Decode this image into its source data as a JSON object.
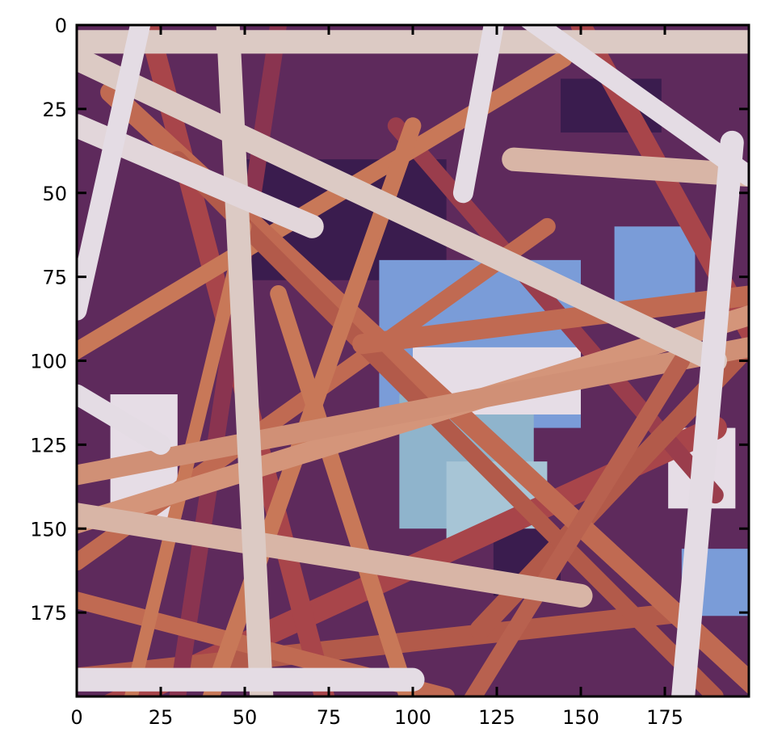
{
  "chart_data": {
    "type": "heatmap",
    "title": "",
    "xlabel": "",
    "ylabel": "",
    "xlim": [
      0,
      200
    ],
    "ylim": [
      200,
      0
    ],
    "origin": "top-left",
    "grid": false,
    "x_ticks": [
      0,
      25,
      50,
      75,
      100,
      125,
      150,
      175
    ],
    "y_ticks": [
      0,
      25,
      50,
      75,
      100,
      125,
      150,
      175
    ],
    "x_tick_labels": [
      "0",
      "25",
      "50",
      "75",
      "100",
      "125",
      "150",
      "175"
    ],
    "y_tick_labels": [
      "0",
      "25",
      "50",
      "75",
      "100",
      "125",
      "150",
      "175"
    ],
    "colormap": "twilight",
    "image_description": "Rendered depth image of randomly overlapping cylindrical fibers",
    "background_colors": [
      "#5e2a5c",
      "#3a1c4e",
      "#7a9cd8",
      "#8fb4cc",
      "#a7c5d6",
      "#e6dde6"
    ],
    "fibers": [
      {
        "x1": 5,
        "y1": 205,
        "x2": 190,
        "y2": 120,
        "w": 7,
        "color": "#a8454a"
      },
      {
        "x1": -5,
        "y1": 195,
        "x2": 180,
        "y2": 175,
        "w": 6,
        "color": "#b25a4a"
      },
      {
        "x1": 20,
        "y1": -5,
        "x2": 75,
        "y2": 205,
        "w": 6,
        "color": "#a8454a"
      },
      {
        "x1": 60,
        "y1": 0,
        "x2": 30,
        "y2": 200,
        "w": 5,
        "color": "#8a3450"
      },
      {
        "x1": 95,
        "y1": 30,
        "x2": 190,
        "y2": 140,
        "w": 5,
        "color": "#9a3d4c"
      },
      {
        "x1": 120,
        "y1": 180,
        "x2": 205,
        "y2": 90,
        "w": 6,
        "color": "#b25a4a"
      },
      {
        "x1": 150,
        "y1": 0,
        "x2": 205,
        "y2": 100,
        "w": 6,
        "color": "#a8454a"
      },
      {
        "x1": 0,
        "y1": 160,
        "x2": 140,
        "y2": 60,
        "w": 5,
        "color": "#c06a52"
      },
      {
        "x1": -5,
        "y1": 100,
        "x2": 145,
        "y2": 10,
        "w": 5,
        "color": "#c87858"
      },
      {
        "x1": 10,
        "y1": 20,
        "x2": 205,
        "y2": 200,
        "w": 6,
        "color": "#c06a52"
      },
      {
        "x1": 30,
        "y1": 40,
        "x2": 190,
        "y2": 200,
        "w": 5,
        "color": "#b25a4a"
      },
      {
        "x1": -5,
        "y1": 170,
        "x2": 110,
        "y2": 200,
        "w": 5,
        "color": "#c06a52"
      },
      {
        "x1": 85,
        "y1": 95,
        "x2": 205,
        "y2": 80,
        "w": 6,
        "color": "#c06a52"
      },
      {
        "x1": 40,
        "y1": 200,
        "x2": 100,
        "y2": 30,
        "w": 5,
        "color": "#c87858"
      },
      {
        "x1": 100,
        "y1": 205,
        "x2": 60,
        "y2": 80,
        "w": 5,
        "color": "#c87858"
      },
      {
        "x1": 15,
        "y1": 205,
        "x2": 50,
        "y2": 60,
        "w": 4,
        "color": "#c87858"
      },
      {
        "x1": -5,
        "y1": 150,
        "x2": 205,
        "y2": 85,
        "w": 6,
        "color": "#d4957a"
      },
      {
        "x1": -5,
        "y1": 135,
        "x2": 205,
        "y2": 95,
        "w": 6,
        "color": "#d09076"
      },
      {
        "x1": 115,
        "y1": 205,
        "x2": 180,
        "y2": 100,
        "w": 5,
        "color": "#b8614f"
      },
      {
        "x1": -5,
        "y1": 145,
        "x2": 150,
        "y2": 170,
        "w": 7,
        "color": "#d8b5a6"
      },
      {
        "x1": 45,
        "y1": 0,
        "x2": 55,
        "y2": 200,
        "w": 7,
        "color": "#dccac4"
      },
      {
        "x1": 0,
        "y1": 10,
        "x2": 190,
        "y2": 100,
        "w": 7,
        "color": "#dccac4"
      },
      {
        "x1": -5,
        "y1": 5,
        "x2": 205,
        "y2": 5,
        "w": 7,
        "color": "#dccac4"
      },
      {
        "x1": 130,
        "y1": 40,
        "x2": 205,
        "y2": 45,
        "w": 7,
        "color": "#d8b5a6"
      },
      {
        "x1": 0,
        "y1": 30,
        "x2": 70,
        "y2": 60,
        "w": 7,
        "color": "#e2d6da"
      },
      {
        "x1": 20,
        "y1": -5,
        "x2": 0,
        "y2": 85,
        "w": 6,
        "color": "#e4dce4"
      },
      {
        "x1": 0,
        "y1": 110,
        "x2": 25,
        "y2": 125,
        "w": 6,
        "color": "#e4dce4"
      },
      {
        "x1": 125,
        "y1": -5,
        "x2": 115,
        "y2": 50,
        "w": 6,
        "color": "#e4dce4"
      },
      {
        "x1": 130,
        "y1": -5,
        "x2": 200,
        "y2": 45,
        "w": 6,
        "color": "#e4dce4"
      },
      {
        "x1": 195,
        "y1": 35,
        "x2": 180,
        "y2": 205,
        "w": 7,
        "color": "#e4dce4"
      },
      {
        "x1": -5,
        "y1": 195,
        "x2": 100,
        "y2": 195,
        "w": 7,
        "color": "#e4dce4"
      }
    ]
  }
}
